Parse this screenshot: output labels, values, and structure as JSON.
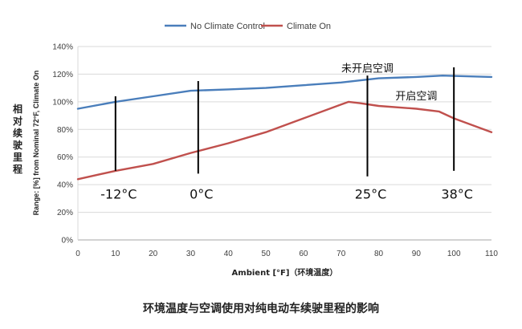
{
  "chart_data": {
    "type": "line",
    "xlabel": "Ambient [°F]（环境温度）",
    "ylabel_cn": "相对续驶里程",
    "ylabel_en": "Range: [%] from Nominal 72°F, Climate On",
    "xlim": [
      0,
      110
    ],
    "ylim": [
      0,
      140
    ],
    "x_ticks": [
      0,
      10,
      20,
      30,
      40,
      50,
      60,
      70,
      80,
      90,
      100,
      110
    ],
    "y_ticks": [
      0,
      20,
      40,
      60,
      80,
      100,
      120,
      140
    ],
    "y_tick_labels": [
      "0%",
      "20%",
      "40%",
      "60%",
      "80%",
      "100%",
      "120%",
      "140%"
    ],
    "grid": true,
    "legend": "top-center",
    "series": [
      {
        "name": "No Climate Control",
        "color": "#4a7ebb",
        "x": [
          0,
          10,
          20,
          30,
          40,
          50,
          60,
          70,
          80,
          90,
          97,
          110
        ],
        "y": [
          95,
          100,
          104,
          108,
          109,
          110,
          112,
          114,
          117,
          118,
          119,
          118
        ]
      },
      {
        "name": "Climate On",
        "color": "#c0504d",
        "x": [
          0,
          10,
          20,
          30,
          40,
          50,
          60,
          70,
          72,
          75,
          80,
          90,
          96,
          100,
          110
        ],
        "y": [
          44,
          50,
          55,
          63,
          70,
          78,
          88,
          98,
          100,
          99,
          97,
          95,
          93,
          88,
          78
        ]
      }
    ],
    "markers": [
      {
        "x": 10,
        "label": "-12°C"
      },
      {
        "x": 32,
        "label": "0°C"
      },
      {
        "x": 77,
        "label": "25°C"
      },
      {
        "x": 100,
        "label": "38°C"
      }
    ],
    "annotations": [
      {
        "text": "未开启空调",
        "x": 77,
        "y": 124
      },
      {
        "text": "开启空调",
        "x": 90,
        "y": 104
      }
    ]
  },
  "caption": "环境温度与空调使用对纯电动车续驶里程的影响"
}
